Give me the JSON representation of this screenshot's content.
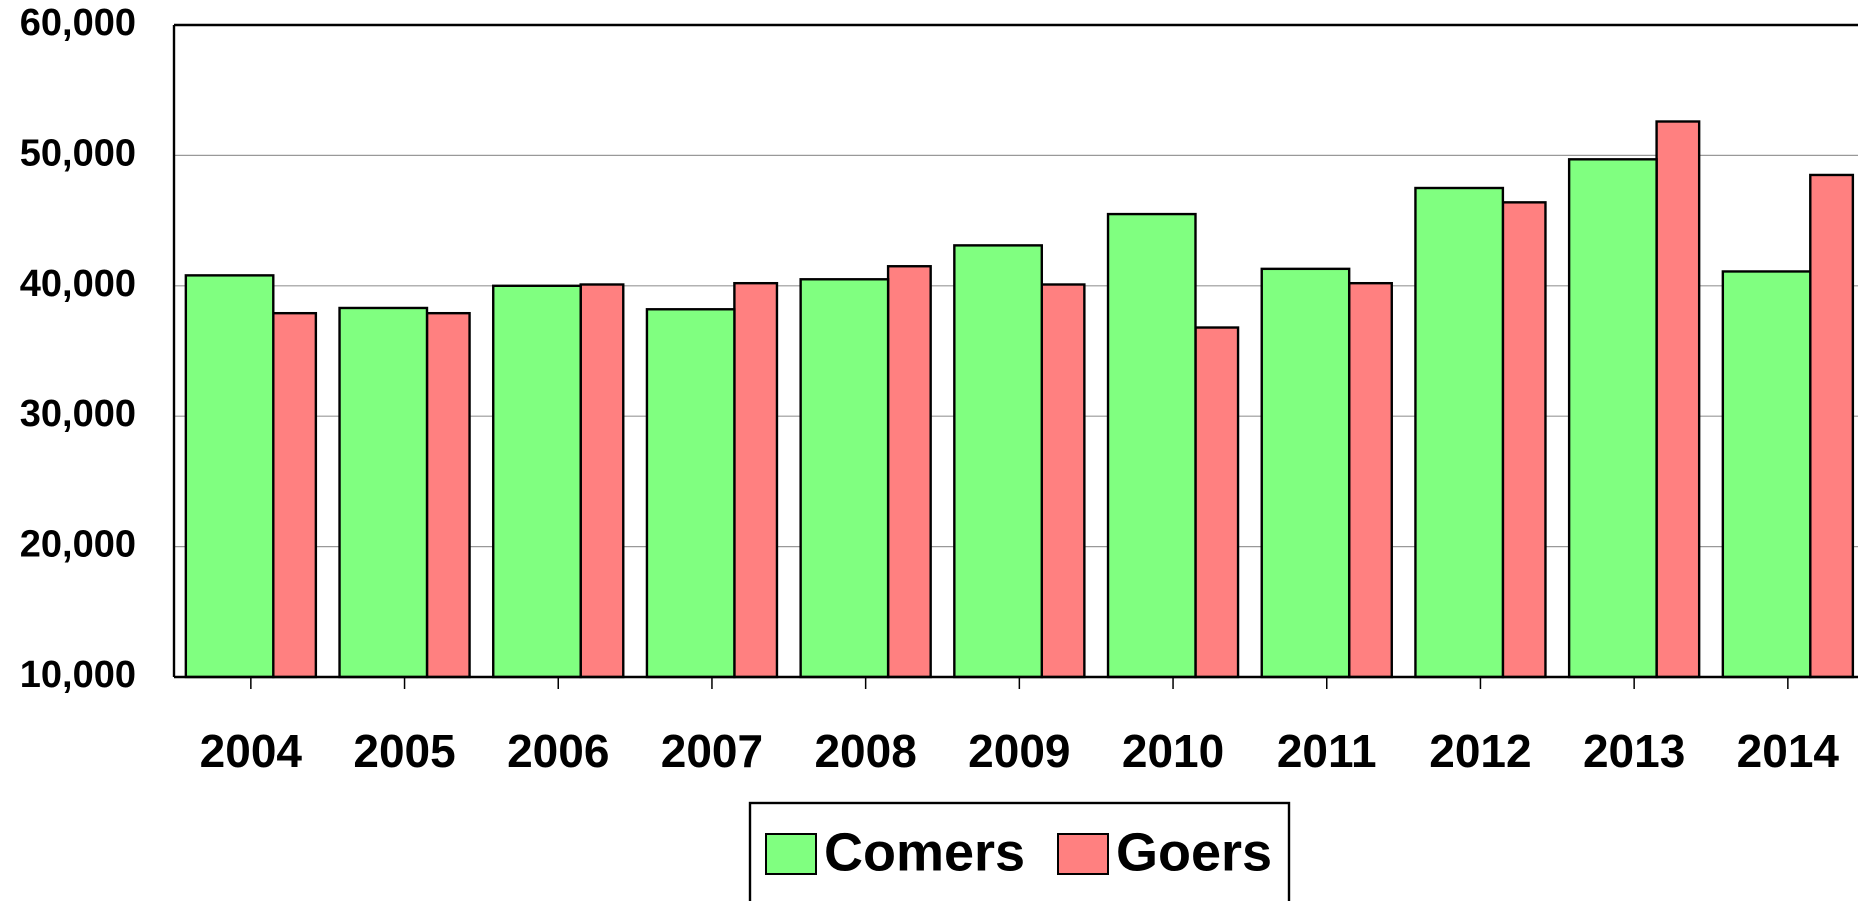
{
  "chart_data": {
    "type": "bar",
    "categories": [
      "2004",
      "2005",
      "2006",
      "2007",
      "2008",
      "2009",
      "2010",
      "2011",
      "2012",
      "2013",
      "2014"
    ],
    "series": [
      {
        "name": "Comers",
        "color": "#80ff80",
        "values": [
          40800,
          38300,
          40000,
          38200,
          40500,
          43100,
          45500,
          41300,
          47500,
          49700,
          41100
        ]
      },
      {
        "name": "Goers",
        "color": "#ff8080",
        "values": [
          37900,
          37900,
          40100,
          40200,
          41500,
          40100,
          36800,
          40200,
          46400,
          52600,
          48500
        ]
      }
    ],
    "ylim": [
      10000,
      60000
    ],
    "yticks": [
      {
        "value": 10000,
        "label": "10,000"
      },
      {
        "value": 20000,
        "label": "20,000"
      },
      {
        "value": 30000,
        "label": "30,000"
      },
      {
        "value": 40000,
        "label": "40,000"
      },
      {
        "value": 50000,
        "label": "50,000"
      },
      {
        "value": 60000,
        "label": "60,000"
      }
    ],
    "grid": true,
    "legend": "bottom"
  }
}
